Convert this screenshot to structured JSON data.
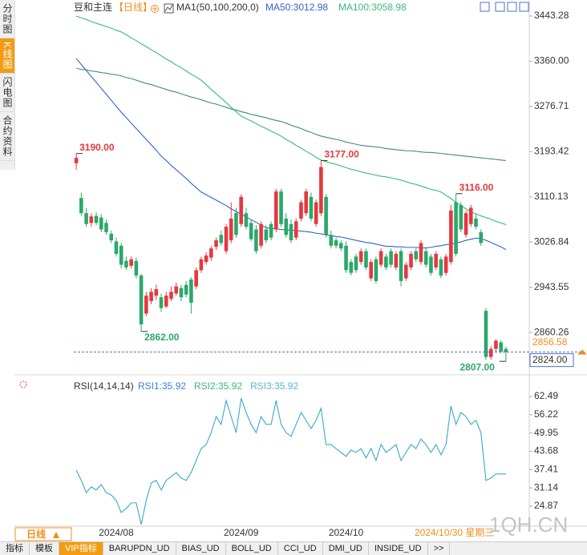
{
  "sidebar": {
    "tabs": [
      "分时图",
      "K线图",
      "闪电图",
      "合约资料"
    ],
    "active": 1
  },
  "header": {
    "symbol": "豆和主连",
    "period": "【日线】",
    "indicator": "MA1(50,100,200,0)"
  },
  "chart_data": [
    {
      "type": "candlestick",
      "categories": [
        null,
        null,
        null,
        null,
        null,
        null,
        null,
        null,
        "2024/08",
        null,
        null,
        null,
        null,
        null,
        null,
        null,
        null,
        null,
        null,
        null,
        null,
        null,
        null,
        null,
        null,
        null,
        null,
        null,
        null,
        null,
        null,
        null,
        null,
        "2024/09",
        null,
        null,
        null,
        null,
        null,
        null,
        null,
        null,
        null,
        null,
        null,
        null,
        null,
        null,
        null,
        null,
        null,
        null,
        null,
        null,
        "2024/10",
        null,
        null,
        null,
        null,
        null,
        null,
        null,
        null,
        null,
        null,
        null,
        null,
        null,
        null,
        null,
        null,
        null,
        null,
        null,
        null,
        null,
        null,
        null,
        null,
        null,
        null,
        null,
        null,
        null,
        null,
        null,
        null
      ],
      "ohlc": [
        [
          3172,
          3190,
          3160,
          3182
        ],
        [
          3108,
          3118,
          3075,
          3080
        ],
        [
          3080,
          3090,
          3055,
          3060
        ],
        [
          3062,
          3080,
          3055,
          3074
        ],
        [
          3075,
          3082,
          3058,
          3062
        ],
        [
          3072,
          3078,
          3045,
          3050
        ],
        [
          3062,
          3068,
          3040,
          3045
        ],
        [
          3042,
          3048,
          3025,
          3030
        ],
        [
          3028,
          3035,
          3000,
          3005
        ],
        [
          3020,
          3025,
          2978,
          2985
        ],
        [
          2992,
          3000,
          2975,
          2980
        ],
        [
          2983,
          3000,
          2978,
          2995
        ],
        [
          2992,
          2998,
          2960,
          2965
        ],
        [
          2965,
          2968,
          2862,
          2875
        ],
        [
          2895,
          2935,
          2890,
          2928
        ],
        [
          2918,
          2942,
          2912,
          2935
        ],
        [
          2928,
          2948,
          2920,
          2940
        ],
        [
          2925,
          2932,
          2898,
          2905
        ],
        [
          2908,
          2935,
          2905,
          2928
        ],
        [
          2922,
          2945,
          2918,
          2935
        ],
        [
          2932,
          2952,
          2928,
          2945
        ],
        [
          2942,
          2948,
          2918,
          2925
        ],
        [
          2948,
          2955,
          2925,
          2930
        ],
        [
          2958,
          2962,
          2895,
          2915
        ],
        [
          2945,
          2980,
          2940,
          2975
        ],
        [
          2975,
          3000,
          2970,
          2995
        ],
        [
          2990,
          3008,
          2985,
          3002
        ],
        [
          2998,
          3020,
          2992,
          3015
        ],
        [
          3018,
          3035,
          3012,
          3030
        ],
        [
          3040,
          3048,
          3020,
          3025
        ],
        [
          3010,
          3060,
          3005,
          3055
        ],
        [
          3030,
          3100,
          3025,
          3070
        ],
        [
          3080,
          3090,
          3035,
          3040
        ],
        [
          3060,
          3115,
          3055,
          3110
        ],
        [
          3080,
          3090,
          3050,
          3055
        ],
        [
          3062,
          3068,
          3028,
          3032
        ],
        [
          3050,
          3058,
          3005,
          3010
        ],
        [
          3020,
          3065,
          3015,
          3060
        ],
        [
          3050,
          3058,
          3025,
          3030
        ],
        [
          3060,
          3065,
          3030,
          3035
        ],
        [
          3050,
          3125,
          3045,
          3120
        ],
        [
          3120,
          3125,
          3055,
          3060
        ],
        [
          3070,
          3080,
          3035,
          3040
        ],
        [
          3060,
          3068,
          3025,
          3030
        ],
        [
          3035,
          3070,
          3030,
          3065
        ],
        [
          3070,
          3105,
          3065,
          3100
        ],
        [
          3080,
          3125,
          3075,
          3120
        ],
        [
          3110,
          3118,
          3065,
          3070
        ],
        [
          3060,
          3105,
          3055,
          3100
        ],
        [
          3080,
          3177,
          3075,
          3165
        ],
        [
          3110,
          3115,
          3035,
          3040
        ],
        [
          3040,
          3048,
          3015,
          3020
        ],
        [
          3030,
          3035,
          3015,
          3020
        ],
        [
          3025,
          3030,
          3010,
          3015
        ],
        [
          3020,
          3028,
          2970,
          2975
        ],
        [
          2990,
          2995,
          2965,
          2970
        ],
        [
          3000,
          3005,
          2970,
          2975
        ],
        [
          2990,
          3015,
          2985,
          3010
        ],
        [
          3010,
          3015,
          2975,
          2980
        ],
        [
          2960,
          2995,
          2955,
          2990
        ],
        [
          2995,
          3000,
          2950,
          2955
        ],
        [
          2985,
          3015,
          2980,
          3010
        ],
        [
          3000,
          3005,
          2975,
          2980
        ],
        [
          3010,
          3015,
          2980,
          2985
        ],
        [
          2980,
          3010,
          2975,
          3005
        ],
        [
          3010,
          3015,
          2945,
          2955
        ],
        [
          2960,
          2990,
          2955,
          2985
        ],
        [
          2980,
          3010,
          2975,
          3005
        ],
        [
          3010,
          3015,
          2990,
          2995
        ],
        [
          2990,
          3030,
          2985,
          3025
        ],
        [
          3010,
          3015,
          2980,
          2985
        ],
        [
          3000,
          3005,
          2965,
          2970
        ],
        [
          2980,
          3010,
          2975,
          3005
        ],
        [
          2995,
          3000,
          2960,
          2965
        ],
        [
          2970,
          3005,
          2965,
          3000
        ],
        [
          2990,
          3095,
          2985,
          3085
        ],
        [
          3100,
          3116,
          3000,
          3005
        ],
        [
          3095,
          3100,
          3045,
          3050
        ],
        [
          3040,
          3085,
          3035,
          3080
        ],
        [
          3060,
          3095,
          3055,
          3090
        ],
        [
          3070,
          3078,
          3050,
          3055
        ],
        [
          3045,
          3050,
          3020,
          3025
        ],
        [
          2900,
          2905,
          2810,
          2815
        ],
        [
          2815,
          2835,
          2810,
          2830
        ],
        [
          2830,
          2848,
          2825,
          2845
        ],
        [
          2842,
          2846,
          2822,
          2825
        ],
        [
          2830,
          2834,
          2807,
          2824
        ]
      ],
      "up_color": "#e5383f",
      "down_color": "#2aa86a",
      "series": [
        {
          "name": "MA50:3012.98",
          "color": "#2f64c8",
          "values": [
            3365,
            3354,
            3343,
            3332,
            3321,
            3310,
            3299,
            3288,
            3277,
            3266,
            3256,
            3246,
            3236,
            3226,
            3216,
            3206,
            3196,
            3185,
            3177,
            3168,
            3160,
            3152,
            3144,
            3135,
            3127,
            3119,
            3114,
            3109,
            3104,
            3099,
            3094,
            3088,
            3083,
            3078,
            3073,
            3068,
            3063,
            3058,
            3053,
            3052,
            3051,
            3050,
            3049,
            3049,
            3048,
            3047,
            3046,
            3045,
            3043,
            3042,
            3040,
            3039,
            3037,
            3036,
            3034,
            3032,
            3030,
            3028,
            3026,
            3025,
            3023,
            3021,
            3019,
            3019,
            3018,
            3018,
            3017,
            3017,
            3017,
            3016,
            3016,
            3017,
            3019,
            3020,
            3022,
            3023,
            3025,
            3027,
            3030,
            3032,
            3034,
            3033,
            3030,
            3026,
            3022,
            3018,
            3012.98
          ]
        },
        {
          "name": "MA100:3058.98",
          "color": "#3cb878",
          "values": [
            3443,
            3440,
            3437,
            3433,
            3430,
            3427,
            3424,
            3421,
            3417,
            3414,
            3409,
            3403,
            3398,
            3392,
            3387,
            3381,
            3376,
            3370,
            3364,
            3359,
            3353,
            3348,
            3342,
            3336,
            3331,
            3325,
            3317,
            3308,
            3300,
            3292,
            3284,
            3275,
            3267,
            3259,
            3254,
            3250,
            3245,
            3240,
            3236,
            3231,
            3227,
            3222,
            3216,
            3211,
            3205,
            3200,
            3194,
            3189,
            3183,
            3178,
            3175,
            3172,
            3170,
            3167,
            3164,
            3161,
            3159,
            3156,
            3154,
            3152,
            3150,
            3148,
            3147,
            3145,
            3143,
            3141,
            3138,
            3135,
            3133,
            3130,
            3127,
            3124,
            3122,
            3119,
            3113,
            3107,
            3100,
            3094,
            3088,
            3082,
            3079,
            3075,
            3072,
            3069,
            3065,
            3062,
            3058.98
          ]
        },
        {
          "color": "#3f8a80",
          "values": [
            3347,
            3345,
            3344,
            3342,
            3341,
            3339,
            3338,
            3336,
            3335,
            3333,
            3330,
            3328,
            3325,
            3322,
            3319,
            3317,
            3314,
            3311,
            3308,
            3305,
            3303,
            3300,
            3297,
            3294,
            3292,
            3289,
            3286,
            3283,
            3281,
            3278,
            3275,
            3272,
            3270,
            3267,
            3265,
            3262,
            3260,
            3258,
            3256,
            3253,
            3251,
            3249,
            3246,
            3242,
            3239,
            3236,
            3232,
            3229,
            3225,
            3222,
            3220,
            3218,
            3216,
            3214,
            3211,
            3209,
            3207,
            3205,
            3204,
            3203,
            3202,
            3201,
            3199,
            3198,
            3197,
            3196,
            3195,
            3195,
            3194,
            3193,
            3192,
            3192,
            3191,
            3190,
            3189,
            3188,
            3187,
            3186,
            3185,
            3184,
            3183,
            3182,
            3181,
            3180,
            3179,
            3178,
            3177
          ]
        }
      ],
      "ylim": [
        2786.6,
        3461.0
      ],
      "yticks": [
        3443.28,
        {
          "value": 3360,
          "label": "3360.00"
        },
        3276.71,
        3193.42,
        3110.13,
        3026.84,
        2943.55,
        2860.26
      ],
      "annotations": [
        {
          "value": 3190,
          "label": "3190.00"
        },
        {
          "value": 3177,
          "label": "3177.00"
        },
        {
          "value": 3116,
          "label": "3116.00"
        },
        {
          "value": 2862,
          "label": "2862.00"
        },
        {
          "value": 2807,
          "label": "2807.00"
        }
      ],
      "marker_price": {
        "value": 2856.58,
        "label": "2856.58",
        "color": "#f08c1e"
      },
      "last_price": {
        "value": 2824,
        "label": "2824.00",
        "color": "#4a72c9"
      }
    },
    {
      "type": "line",
      "title": "RSI(14,14,14)",
      "color": "#38a8cc",
      "values": [
        37.2,
        33.7,
        29.5,
        31.5,
        30.4,
        32.3,
        29.5,
        28.7,
        26.8,
        22.7,
        24.1,
        26.0,
        26.0,
        18.6,
        26.8,
        32.8,
        33.7,
        30.4,
        33.7,
        35.0,
        36.4,
        34.5,
        33.7,
        36.4,
        40.5,
        44.6,
        46.0,
        50.1,
        55.6,
        52.9,
        61.1,
        55.6,
        50.1,
        61.9,
        57.0,
        52.9,
        50.1,
        55.6,
        52.9,
        52.9,
        61.1,
        52.9,
        50.1,
        48.8,
        52.9,
        57.0,
        54.3,
        51.5,
        54.3,
        58.4,
        46.0,
        46.0,
        44.6,
        43.3,
        41.9,
        44.1,
        43.3,
        44.6,
        41.4,
        44.6,
        40.5,
        46.0,
        43.3,
        44.6,
        46.0,
        40.5,
        43.3,
        46.0,
        44.6,
        47.9,
        46.0,
        43.3,
        46.0,
        42.5,
        46.0,
        59.2,
        52.9,
        57.0,
        55.6,
        52.9,
        54.3,
        50.1,
        33.7,
        34.5,
        35.9,
        35.9,
        35.92
      ],
      "legend": [
        {
          "text": "RSI1:35.92",
          "color": "#3f7fd8"
        },
        {
          "text": "RSI2:35.92",
          "color": "#3cb878"
        },
        {
          "text": "RSI3:35.92",
          "color": "#5ab4d8"
        }
      ],
      "ylim": [
        18.0,
        65.8
      ],
      "yticks": [
        62.49,
        56.22,
        49.95,
        43.68,
        37.41,
        31.14,
        24.87
      ]
    }
  ],
  "footer": {
    "period_button": "日线",
    "cursor_date": "2024/10/30 星期三",
    "watermark": "1QH.CN"
  },
  "tabbar": {
    "tabs": [
      "指标",
      "模板",
      "VIP指标",
      "BARUPDN_UD",
      "BIAS_UD",
      "BOLL_UD",
      "CCI_UD",
      "DMI_UD",
      "INSIDE_UD",
      ">>"
    ],
    "highlight": 2
  }
}
